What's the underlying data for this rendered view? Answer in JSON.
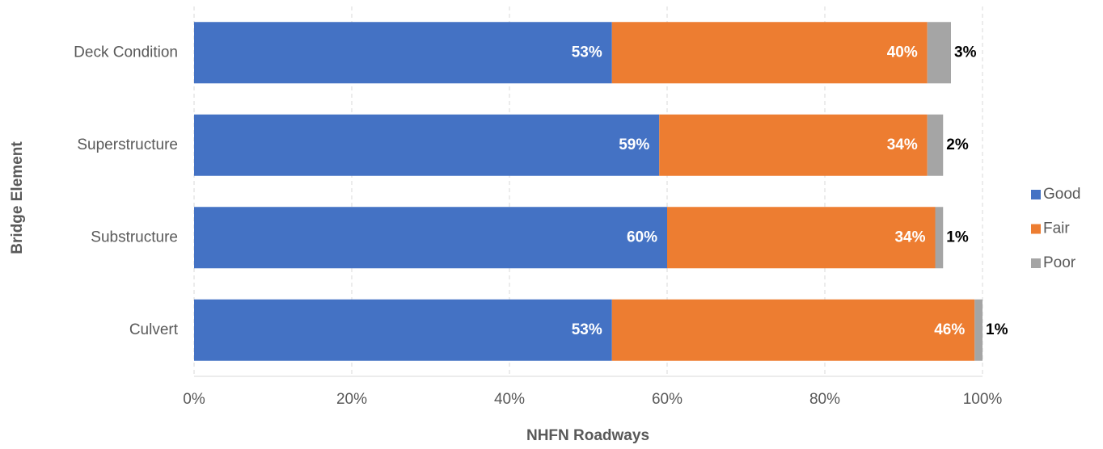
{
  "chart_data": {
    "type": "stacked-bar-horizontal",
    "x_label": "NHFN Roadways",
    "y_label": "Bridge Element",
    "categories": [
      "Deck Condition",
      "Superstructure",
      "Substructure",
      "Culvert"
    ],
    "series": [
      {
        "name": "Good",
        "color": "#4472c4",
        "label_color": "#ffffff",
        "values": [
          53,
          59,
          60,
          53
        ],
        "value_labels": [
          "53%",
          "59%",
          "60%",
          "53%"
        ]
      },
      {
        "name": "Fair",
        "color": "#ed7d31",
        "label_color": "#ffffff",
        "values": [
          40,
          34,
          34,
          46
        ],
        "value_labels": [
          "40%",
          "34%",
          "34%",
          "46%"
        ]
      },
      {
        "name": "Poor",
        "color": "#a5a5a5",
        "label_color": "#000000",
        "values": [
          3,
          2,
          1,
          1
        ],
        "value_labels": [
          "3%",
          "2%",
          "1%",
          "1%"
        ]
      }
    ],
    "xlim": [
      0,
      100
    ],
    "xticks": [
      {
        "value": 0,
        "label": "0%"
      },
      {
        "value": 20,
        "label": "20%"
      },
      {
        "value": 40,
        "label": "40%"
      },
      {
        "value": 60,
        "label": "60%"
      },
      {
        "value": 80,
        "label": "80%"
      },
      {
        "value": 100,
        "label": "100%"
      }
    ],
    "grid": true,
    "legend": "right"
  }
}
